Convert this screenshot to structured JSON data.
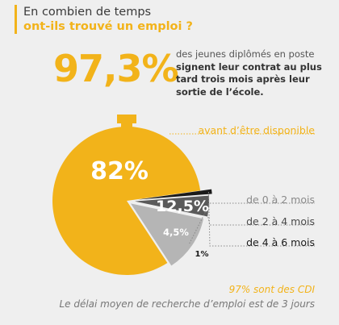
{
  "header": {
    "line1": "En combien de temps",
    "line2": "ont-ils trouvé un emploi ?"
  },
  "headline": {
    "percent": "97,3%",
    "desc_normal": "des jeunes diplômés en poste",
    "desc_bold": "signent leur contrat au plus tard trois mois après leur sortie de l’école."
  },
  "chart_data": {
    "type": "pie",
    "slices": [
      {
        "label": "avant d’être disponible",
        "value": 82,
        "value_label": "82%",
        "color": "#f2b31a",
        "text_color": "#f2b31a"
      },
      {
        "label": "de 0 à 2 mois",
        "value": 12.5,
        "value_label": "12,5%",
        "color": "#b5b5b5",
        "text_color": "#8a8a8a"
      },
      {
        "label": "de 2 à 4 mois",
        "value": 4.5,
        "value_label": "4,5%",
        "color": "#5a5a5a",
        "text_color": "#4a4a4a"
      },
      {
        "label": "de 4 à 6 mois",
        "value": 1,
        "value_label": "1%",
        "color": "#1a1a1a",
        "text_color": "#1a1a1a"
      }
    ]
  },
  "footer": {
    "cdi": "97% sont des CDI",
    "delay": "Le délai moyen de recherche d’emploi est de 3 jours"
  }
}
